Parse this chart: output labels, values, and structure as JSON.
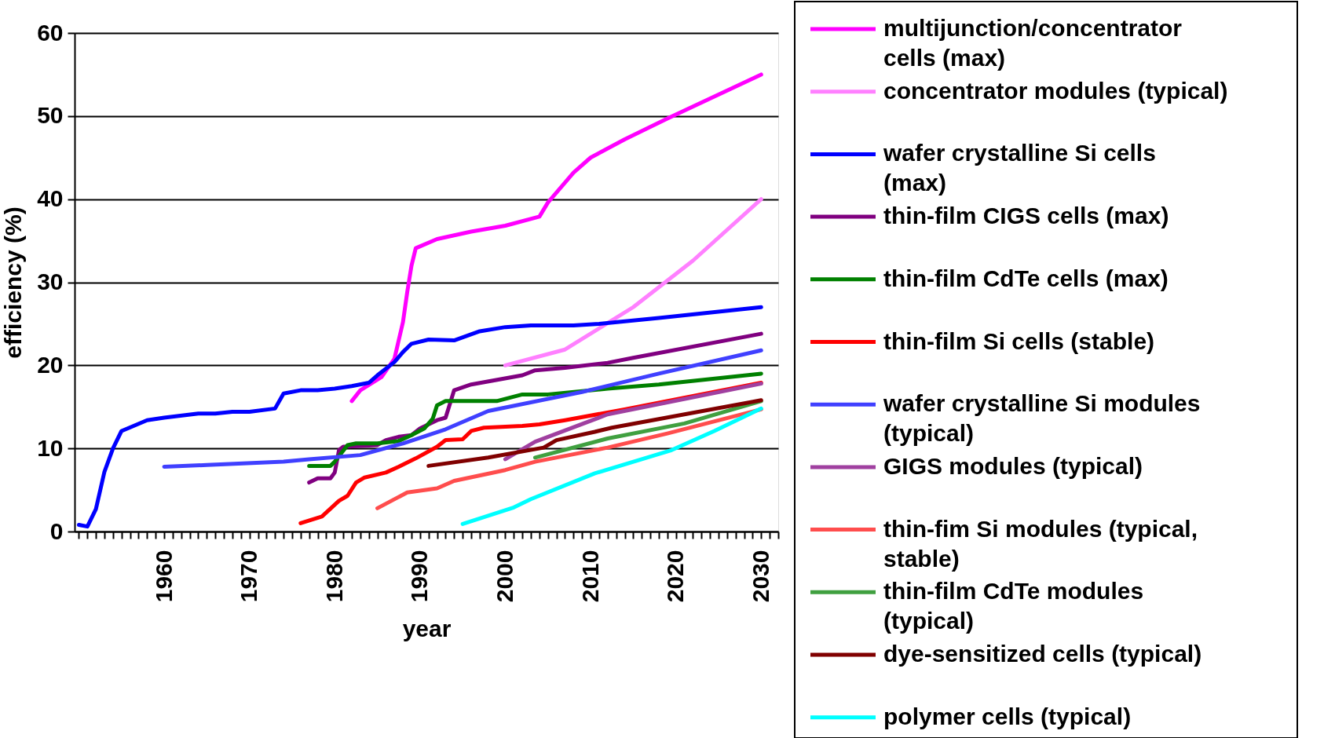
{
  "chart_data": {
    "type": "line",
    "xlabel": "year",
    "ylabel": "efficiency (%)",
    "xlim": [
      1949.5,
      2032
    ],
    "ylim": [
      0,
      60
    ],
    "yticks": [
      0,
      10,
      20,
      30,
      40,
      50,
      60
    ],
    "xticks": [
      {
        "value": 1950,
        "label": null
      },
      {
        "value": 1951,
        "label": null
      },
      {
        "value": 1952,
        "label": null
      },
      {
        "value": 1953,
        "label": null
      },
      {
        "value": 1954,
        "label": null
      },
      {
        "value": 1955,
        "label": null
      },
      {
        "value": 1956,
        "label": null
      },
      {
        "value": 1957,
        "label": null
      },
      {
        "value": 1958,
        "label": null
      },
      {
        "value": 1959,
        "label": null
      },
      1960,
      {
        "value": 1961,
        "label": null
      },
      {
        "value": 1962,
        "label": null
      },
      {
        "value": 1963,
        "label": null
      },
      {
        "value": 1964,
        "label": null
      },
      {
        "value": 1965,
        "label": null
      },
      {
        "value": 1966,
        "label": null
      },
      {
        "value": 1967,
        "label": null
      },
      {
        "value": 1968,
        "label": null
      },
      {
        "value": 1969,
        "label": null
      },
      1970,
      {
        "value": 1971,
        "label": null
      },
      {
        "value": 1972,
        "label": null
      },
      {
        "value": 1973,
        "label": null
      },
      {
        "value": 1974,
        "label": null
      },
      {
        "value": 1975,
        "label": null
      },
      {
        "value": 1976,
        "label": null
      },
      {
        "value": 1977,
        "label": null
      },
      {
        "value": 1978,
        "label": null
      },
      {
        "value": 1979,
        "label": null
      },
      1980,
      {
        "value": 1981,
        "label": null
      },
      {
        "value": 1982,
        "label": null
      },
      {
        "value": 1983,
        "label": null
      },
      {
        "value": 1984,
        "label": null
      },
      {
        "value": 1985,
        "label": null
      },
      {
        "value": 1986,
        "label": null
      },
      {
        "value": 1987,
        "label": null
      },
      {
        "value": 1988,
        "label": null
      },
      {
        "value": 1989,
        "label": null
      },
      1990,
      {
        "value": 1991,
        "label": null
      },
      {
        "value": 1992,
        "label": null
      },
      {
        "value": 1993,
        "label": null
      },
      {
        "value": 1994,
        "label": null
      },
      {
        "value": 1995,
        "label": null
      },
      {
        "value": 1996,
        "label": null
      },
      {
        "value": 1997,
        "label": null
      },
      {
        "value": 1998,
        "label": null
      },
      {
        "value": 1999,
        "label": null
      },
      2000,
      {
        "value": 2001,
        "label": null
      },
      {
        "value": 2002,
        "label": null
      },
      {
        "value": 2003,
        "label": null
      },
      {
        "value": 2004,
        "label": null
      },
      {
        "value": 2005,
        "label": null
      },
      {
        "value": 2006,
        "label": null
      },
      {
        "value": 2007,
        "label": null
      },
      {
        "value": 2008,
        "label": null
      },
      {
        "value": 2009,
        "label": null
      },
      2010,
      {
        "value": 2011,
        "label": null
      },
      {
        "value": 2012,
        "label": null
      },
      {
        "value": 2013,
        "label": null
      },
      {
        "value": 2014,
        "label": null
      },
      {
        "value": 2015,
        "label": null
      },
      {
        "value": 2016,
        "label": null
      },
      {
        "value": 2017,
        "label": null
      },
      {
        "value": 2018,
        "label": null
      },
      {
        "value": 2019,
        "label": null
      },
      2020,
      {
        "value": 2021,
        "label": null
      },
      {
        "value": 2022,
        "label": null
      },
      {
        "value": 2023,
        "label": null
      },
      {
        "value": 2024,
        "label": null
      },
      {
        "value": 2025,
        "label": null
      },
      {
        "value": 2026,
        "label": null
      },
      {
        "value": 2027,
        "label": null
      },
      {
        "value": 2028,
        "label": null
      },
      {
        "value": 2029,
        "label": null
      },
      2030,
      {
        "value": 2031,
        "label": null
      },
      {
        "value": 2032,
        "label": null
      }
    ],
    "grid": "y",
    "legend": "right",
    "series": [
      {
        "name": "multijunction/concentrator cells (max)",
        "color": "#ff00ff",
        "x": [
          1982,
          1983,
          1985.5,
          1987,
          1988,
          1988.5,
          1989,
          1989.5,
          1992,
          1996,
          2000,
          2004,
          2005,
          2008,
          2010,
          2014,
          2019,
          2030
        ],
        "values": [
          15.7,
          17,
          18.6,
          20.8,
          25.2,
          28.8,
          32,
          34.1,
          35.2,
          36.1,
          36.8,
          37.9,
          39.6,
          43.2,
          45,
          47.2,
          49.7,
          55
        ]
      },
      {
        "name": "concentrator modules (typical)",
        "color": "#ff80ff",
        "x": [
          2000,
          2007,
          2015,
          2022,
          2030
        ],
        "values": [
          20,
          21.9,
          27,
          32.6,
          40
        ]
      },
      {
        "name": "wafer crystalline Si cells (max)",
        "color": "#0000ff",
        "x": [
          1950,
          1951,
          1952,
          1953,
          1954,
          1955,
          1958,
          1960,
          1964,
          1966,
          1968,
          1970,
          1973,
          1974,
          1976,
          1978,
          1980,
          1982,
          1984,
          1985,
          1987,
          1988,
          1989,
          1991,
          1994,
          1997,
          2000,
          2003,
          2008,
          2011,
          2018,
          2030
        ],
        "values": [
          0.8,
          0.6,
          2.7,
          7.2,
          10,
          12.1,
          13.4,
          13.7,
          14.2,
          14.2,
          14.4,
          14.4,
          14.8,
          16.6,
          17,
          17,
          17.2,
          17.5,
          17.9,
          18.8,
          20.4,
          21.6,
          22.6,
          23.1,
          23,
          24.1,
          24.6,
          24.8,
          24.8,
          25,
          25.7,
          27
        ]
      },
      {
        "name": "thin-film CIGS cells (max)",
        "color": "#800080",
        "x": [
          1977,
          1978,
          1979.5,
          1980,
          1980.5,
          1981,
          1985,
          1986,
          1987.5,
          1989,
          1990,
          1992,
          1993,
          1994,
          1996,
          2002,
          2003.5,
          2007,
          2012,
          2015,
          2030
        ],
        "values": [
          5.9,
          6.4,
          6.4,
          7.1,
          9.8,
          10.2,
          10.4,
          11,
          11.4,
          11.6,
          12.4,
          13.4,
          13.7,
          17,
          17.7,
          18.8,
          19.4,
          19.7,
          20.3,
          20.9,
          23.8
        ]
      },
      {
        "name": "thin-film CdTe cells (max)",
        "color": "#008000",
        "x": [
          1977,
          1979.5,
          1980,
          1981.5,
          1982.5,
          1985,
          1987.5,
          1989,
          1990.5,
          1991.5,
          1992,
          1993,
          1999,
          2002,
          2005,
          2012,
          2018,
          2030
        ],
        "values": [
          7.9,
          7.9,
          8.4,
          10.4,
          10.6,
          10.6,
          10.9,
          11.6,
          12.4,
          13.6,
          15.2,
          15.7,
          15.7,
          16.5,
          16.5,
          17.2,
          17.7,
          19
        ]
      },
      {
        "name": "thin-film Si cells (stable)",
        "color": "#ff0000",
        "x": [
          1976,
          1978.5,
          1980.5,
          1981.5,
          1982.5,
          1983.5,
          1986,
          1987.5,
          1989.5,
          1992,
          1993,
          1995,
          1996,
          1997.5,
          2002,
          2004,
          2007,
          2014,
          2030
        ],
        "values": [
          1,
          1.8,
          3.7,
          4.3,
          5.9,
          6.5,
          7.1,
          7.8,
          8.8,
          10.2,
          11,
          11.1,
          12.1,
          12.5,
          12.7,
          12.9,
          13.4,
          14.7,
          17.9
        ]
      },
      {
        "name": "wafer crystalline Si modules (typical)",
        "color": "#4040ff",
        "x": [
          1960,
          1965,
          1974,
          1977,
          1983,
          1988,
          1993,
          1998,
          2009,
          2018,
          2030
        ],
        "values": [
          7.8,
          8,
          8.4,
          8.7,
          9.2,
          10.6,
          12.3,
          14.5,
          16.8,
          19,
          21.8
        ]
      },
      {
        "name": "GIGS modules (typical)",
        "color": "#a040a0",
        "x": [
          2000,
          2003.5,
          2012,
          2030
        ],
        "values": [
          8.7,
          10.8,
          14.1,
          17.8
        ]
      },
      {
        "name": "thin-fim Si modules (typical, stable)",
        "color": "#ff4d4d",
        "x": [
          1985,
          1988.5,
          1992,
          1994,
          2000,
          2003.5,
          2012,
          2019,
          2030
        ],
        "values": [
          2.8,
          4.7,
          5.2,
          6.1,
          7.4,
          8.4,
          10.1,
          11.8,
          14.7
        ]
      },
      {
        "name": "thin-film CdTe modules (typical)",
        "color": "#40a040",
        "x": [
          2003.5,
          2012,
          2021,
          2030
        ],
        "values": [
          8.9,
          11.2,
          13,
          15.7
        ]
      },
      {
        "name": "dye-sensitized cells (typical)",
        "color": "#800000",
        "x": [
          1991,
          1998,
          2004.5,
          2006,
          2010.5,
          2012.5,
          2030
        ],
        "values": [
          7.9,
          8.9,
          10.1,
          11,
          12,
          12.5,
          15.8
        ]
      },
      {
        "name": "polymer cells (typical)",
        "color": "#00ffff",
        "x": [
          1995,
          2001,
          2003,
          2010.5,
          2019.5,
          2024.5,
          2030
        ],
        "values": [
          0.9,
          2.9,
          3.9,
          7,
          9.8,
          12.1,
          14.8
        ]
      }
    ]
  }
}
